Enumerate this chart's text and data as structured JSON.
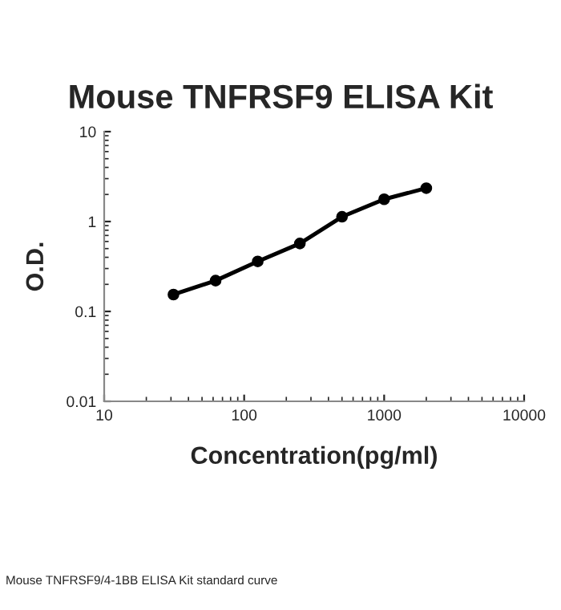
{
  "chart_data": {
    "type": "line",
    "title": "Mouse TNFRSF9 ELISA Kit",
    "xlabel": "Concentration(pg/ml)",
    "ylabel": "O.D.",
    "x": [
      31.25,
      62.5,
      125,
      250,
      500,
      1000,
      2000
    ],
    "series": [
      {
        "color": "#000000",
        "values": [
          0.154,
          0.22,
          0.36,
          0.57,
          1.13,
          1.77,
          2.35
        ]
      }
    ],
    "log": "xy",
    "xlim": [
      10,
      10000
    ],
    "ylim": [
      0.01,
      10
    ],
    "xticks": [
      10,
      100,
      1000,
      10000
    ],
    "yticks": [
      0.01,
      0.1,
      1,
      10
    ],
    "marker": "circle",
    "line_style": "solid",
    "grid": false,
    "legend": false,
    "annotations": [
      "Mouse TNFRSF9/4-1BB ELISA Kit standard curve"
    ]
  }
}
